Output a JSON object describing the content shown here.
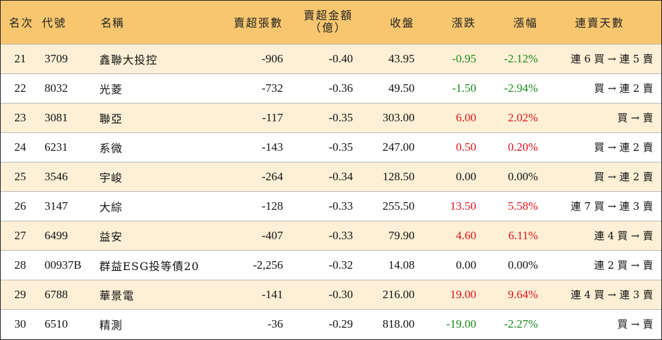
{
  "headers": {
    "rank": "名次",
    "code": "代號",
    "name": "名稱",
    "sell_lots": "賣超張數",
    "sell_amount_line1": "賣超金額",
    "sell_amount_line2": "（億）",
    "close": "收盤",
    "change": "漲跌",
    "pct": "漲幅",
    "days": "連賣天數"
  },
  "colors": {
    "header_bg": "#f7c66f",
    "row_alt_bg": "#fdf0d6",
    "up": "#e0121a",
    "down": "#1a8a1a"
  },
  "rows": [
    {
      "rank": "21",
      "code": "3709",
      "name": "鑫聯大投控",
      "sell_lots": "-906",
      "sell_amount": "-0.40",
      "close": "43.95",
      "change": "-0.95",
      "pct": "-2.12%",
      "days": "連 6 買 → 連 5 賣",
      "dir": "neg"
    },
    {
      "rank": "22",
      "code": "8032",
      "name": "光菱",
      "sell_lots": "-732",
      "sell_amount": "-0.36",
      "close": "49.50",
      "change": "-1.50",
      "pct": "-2.94%",
      "days": "買 → 連 2 賣",
      "dir": "neg"
    },
    {
      "rank": "23",
      "code": "3081",
      "name": "聯亞",
      "sell_lots": "-117",
      "sell_amount": "-0.35",
      "close": "303.00",
      "change": "6.00",
      "pct": "2.02%",
      "days": "買 → 賣",
      "dir": "pos"
    },
    {
      "rank": "24",
      "code": "6231",
      "name": "系微",
      "sell_lots": "-143",
      "sell_amount": "-0.35",
      "close": "247.00",
      "change": "0.50",
      "pct": "0.20%",
      "days": "買 → 連 2 賣",
      "dir": "pos"
    },
    {
      "rank": "25",
      "code": "3546",
      "name": "宇峻",
      "sell_lots": "-264",
      "sell_amount": "-0.34",
      "close": "128.50",
      "change": "0.00",
      "pct": "0.00%",
      "days": "買 → 連 2 賣",
      "dir": "flat"
    },
    {
      "rank": "26",
      "code": "3147",
      "name": "大綜",
      "sell_lots": "-128",
      "sell_amount": "-0.33",
      "close": "255.50",
      "change": "13.50",
      "pct": "5.58%",
      "days": "連 7 買 → 連 3 賣",
      "dir": "pos"
    },
    {
      "rank": "27",
      "code": "6499",
      "name": "益安",
      "sell_lots": "-407",
      "sell_amount": "-0.33",
      "close": "79.90",
      "change": "4.60",
      "pct": "6.11%",
      "days": "連 4 買 → 賣",
      "dir": "pos"
    },
    {
      "rank": "28",
      "code": "00937B",
      "name": "群益ESG投等債20",
      "sell_lots": "-2,256",
      "sell_amount": "-0.32",
      "close": "14.08",
      "change": "0.00",
      "pct": "0.00%",
      "days": "連 2 買 → 賣",
      "dir": "flat"
    },
    {
      "rank": "29",
      "code": "6788",
      "name": "華景電",
      "sell_lots": "-141",
      "sell_amount": "-0.30",
      "close": "216.00",
      "change": "19.00",
      "pct": "9.64%",
      "days": "連 4 買 → 連 3 賣",
      "dir": "pos"
    },
    {
      "rank": "30",
      "code": "6510",
      "name": "精測",
      "sell_lots": "-36",
      "sell_amount": "-0.29",
      "close": "818.00",
      "change": "-19.00",
      "pct": "-2.27%",
      "days": "買 → 賣",
      "dir": "neg"
    }
  ]
}
